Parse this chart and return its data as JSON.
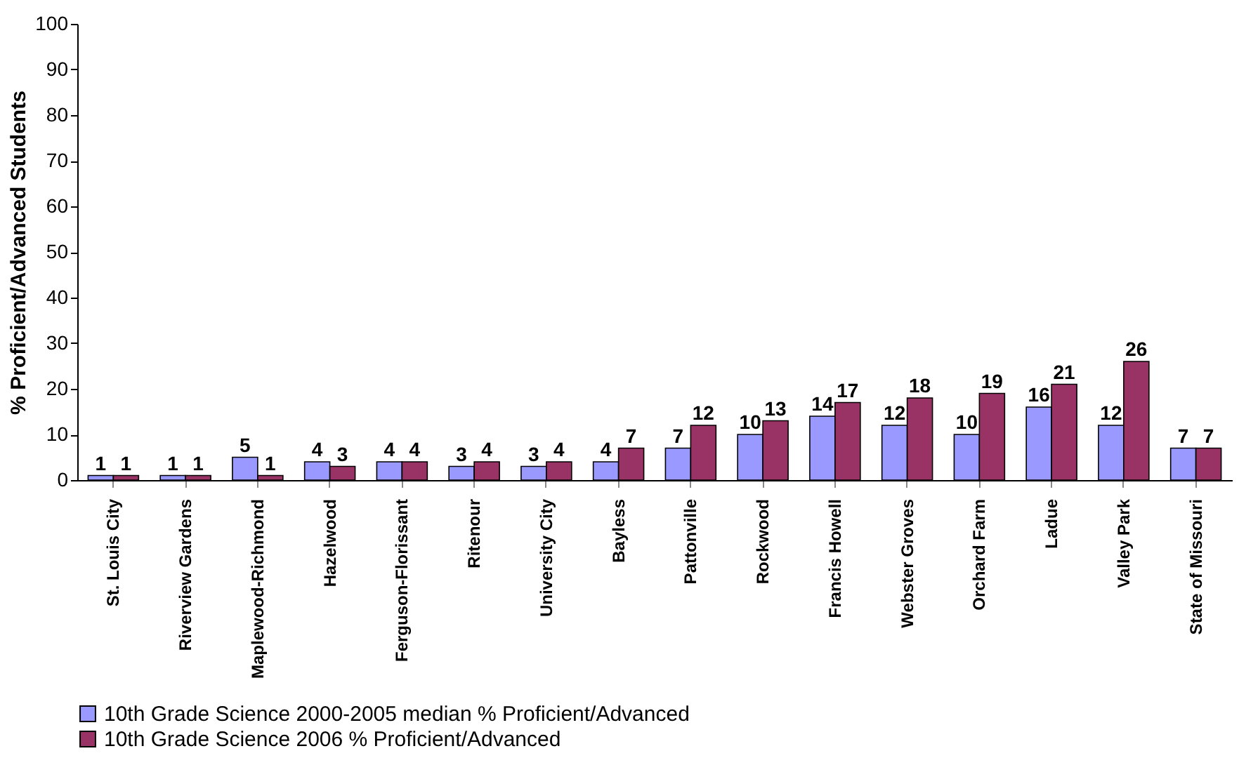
{
  "chart_data": {
    "type": "bar",
    "ylabel": "% Proficient/Advanced Students",
    "categories": [
      "St. Louis City",
      "Riverview Gardens",
      "Maplewood-Richmond",
      "Hazelwood",
      "Ferguson-Florissant",
      "Ritenour",
      "University City",
      "Bayless",
      "Pattonville",
      "Rockwood",
      "Francis Howell",
      "Webster Groves",
      "Orchard Farm",
      "Ladue",
      "Valley Park",
      "State of Missouri"
    ],
    "series": [
      {
        "name": "10th Grade Science  2000-2005 median % Proficient/Advanced",
        "color": "#9999ff",
        "values": [
          1,
          1,
          5,
          4,
          4,
          3,
          3,
          4,
          7,
          10,
          14,
          12,
          10,
          16,
          12,
          7
        ]
      },
      {
        "name": "10th Grade Science  2006 % Proficient/Advanced",
        "color": "#993366",
        "values": [
          1,
          1,
          1,
          3,
          4,
          4,
          4,
          7,
          12,
          13,
          17,
          18,
          19,
          21,
          26,
          7
        ]
      }
    ],
    "ylim": [
      0,
      100
    ],
    "yticks": [
      0,
      10,
      20,
      30,
      40,
      50,
      60,
      70,
      80,
      90,
      100
    ],
    "data_labels": true,
    "grid": false,
    "legend": "bottom"
  }
}
